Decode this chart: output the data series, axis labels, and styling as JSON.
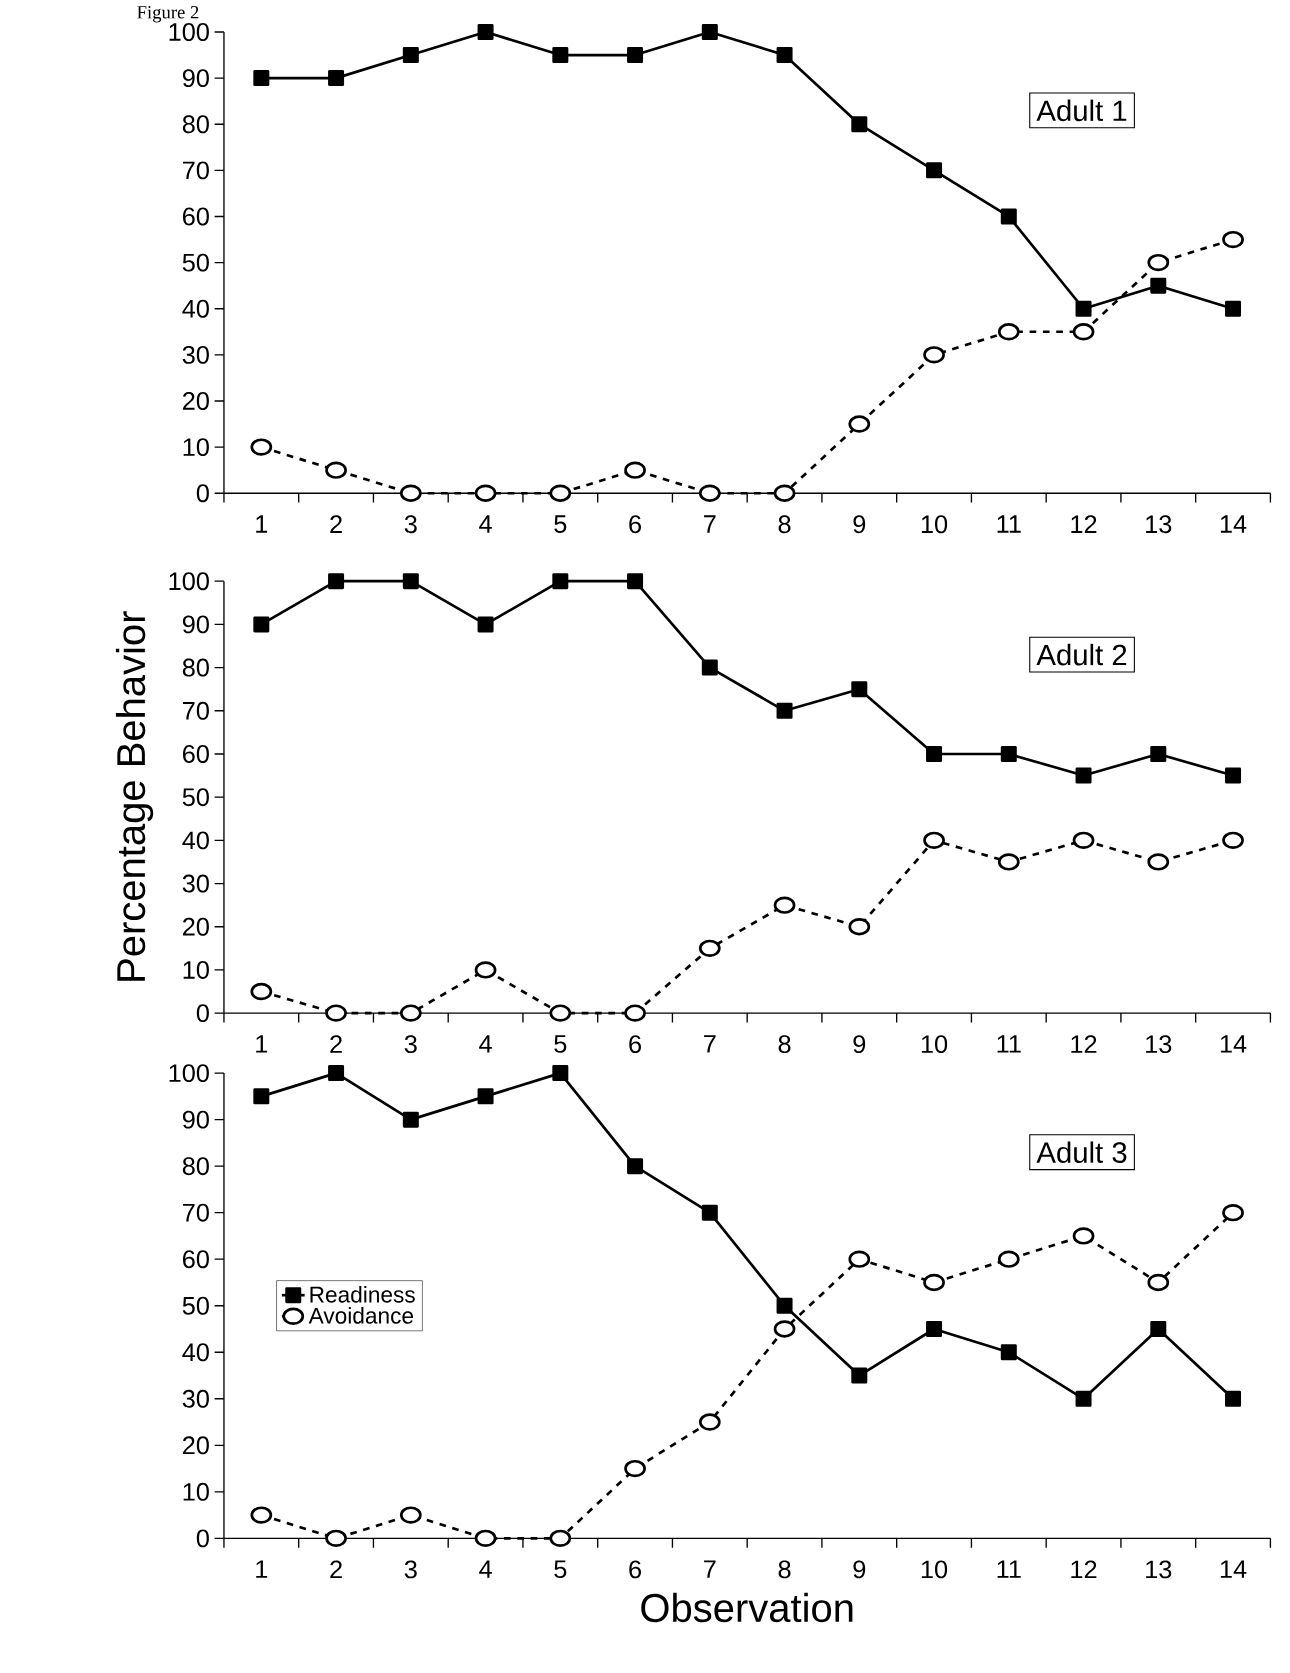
{
  "chart_data": [
    {
      "type": "line",
      "title": "Figure 2",
      "categories": [
        "1",
        "2",
        "3",
        "4",
        "5",
        "6",
        "7",
        "8",
        "9",
        "10",
        "11",
        "12",
        "13",
        "14"
      ],
      "ylim": [
        0,
        100
      ],
      "yticks": [
        0,
        10,
        20,
        30,
        40,
        50,
        60,
        70,
        80,
        90,
        100
      ],
      "annotations": [
        "Adult 1"
      ],
      "series": [
        {
          "color": "#000000",
          "marker": "square",
          "line_style": "solid",
          "values": [
            90,
            90,
            95,
            100,
            95,
            95,
            100,
            95,
            80,
            70,
            60,
            40,
            45,
            40
          ]
        },
        {
          "color": "#000000",
          "marker": "circle",
          "line_style": "dashed",
          "values": [
            10,
            5,
            0,
            0,
            0,
            5,
            0,
            0,
            15,
            30,
            35,
            35,
            50,
            55
          ]
        }
      ]
    },
    {
      "type": "line",
      "ylabel": "Percentage Behavior",
      "categories": [
        "1",
        "2",
        "3",
        "4",
        "5",
        "6",
        "7",
        "8",
        "9",
        "10",
        "11",
        "12",
        "13",
        "14"
      ],
      "ylim": [
        0,
        100
      ],
      "yticks": [
        0,
        10,
        20,
        30,
        40,
        50,
        60,
        70,
        80,
        90,
        100
      ],
      "annotations": [
        "Adult 2"
      ],
      "series": [
        {
          "color": "#000000",
          "marker": "square",
          "line_style": "solid",
          "values": [
            90,
            100,
            100,
            90,
            100,
            100,
            80,
            70,
            75,
            60,
            60,
            55,
            60,
            55
          ]
        },
        {
          "color": "#000000",
          "marker": "circle",
          "line_style": "dashed",
          "values": [
            5,
            0,
            0,
            10,
            0,
            0,
            15,
            25,
            20,
            40,
            35,
            40,
            35,
            40
          ]
        }
      ]
    },
    {
      "type": "line",
      "xlabel": "Observation",
      "categories": [
        "1",
        "2",
        "3",
        "4",
        "5",
        "6",
        "7",
        "8",
        "9",
        "10",
        "11",
        "12",
        "13",
        "14"
      ],
      "ylim": [
        0,
        100
      ],
      "yticks": [
        0,
        10,
        20,
        30,
        40,
        50,
        60,
        70,
        80,
        90,
        100
      ],
      "annotations": [
        "Adult 3"
      ],
      "legend": "left",
      "series": [
        {
          "name": "Readiness",
          "color": "#000000",
          "marker": "square",
          "line_style": "solid",
          "values": [
            95,
            100,
            90,
            95,
            100,
            80,
            70,
            50,
            35,
            45,
            40,
            30,
            45,
            30
          ]
        },
        {
          "name": "Avoidance",
          "color": "#000000",
          "marker": "circle",
          "line_style": "dashed",
          "values": [
            5,
            0,
            5,
            0,
            0,
            15,
            25,
            45,
            60,
            55,
            60,
            65,
            55,
            70
          ]
        }
      ]
    }
  ]
}
